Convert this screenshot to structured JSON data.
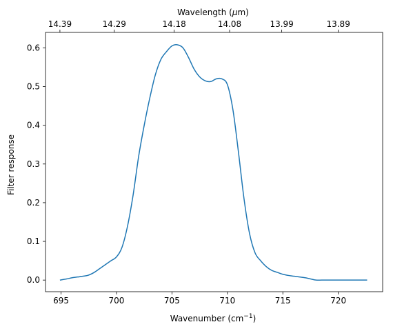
{
  "chart_data": {
    "type": "line",
    "title": "",
    "xlabel": "Wavenumber (cm",
    "xlabel_superscript": "−1",
    "xlabel_suffix": ")",
    "ylabel": "Filter response",
    "top_xlabel": "Wavelength (",
    "top_xlabel_mu": "μ",
    "top_xlabel_suffix": "m)",
    "xlim": [
      693.6,
      724.0
    ],
    "ylim": [
      -0.03,
      0.64
    ],
    "grid": false,
    "x_ticks": [
      695,
      700,
      705,
      710,
      715,
      720
    ],
    "x_tick_labels": [
      "695",
      "700",
      "705",
      "710",
      "715",
      "720"
    ],
    "y_ticks": [
      0.0,
      0.1,
      0.2,
      0.3,
      0.4,
      0.5,
      0.6
    ],
    "y_tick_labels": [
      "0.0",
      "0.1",
      "0.2",
      "0.3",
      "0.4",
      "0.5",
      "0.6"
    ],
    "top_ticks": [
      694.9,
      699.8,
      705.2,
      710.2,
      714.9,
      720.0
    ],
    "top_tick_labels": [
      "14.39",
      "14.29",
      "14.18",
      "14.08",
      "13.99",
      "13.89"
    ],
    "series": [
      {
        "color": "#1f77b4",
        "x": [
          694.9,
          695.5,
          696.0,
          696.5,
          697.0,
          697.5,
          698.0,
          698.5,
          699.0,
          699.5,
          700.0,
          700.5,
          701.0,
          701.5,
          702.0,
          702.5,
          703.0,
          703.5,
          704.0,
          704.5,
          705.0,
          705.5,
          706.0,
          706.5,
          707.0,
          707.5,
          708.0,
          708.5,
          709.0,
          709.5,
          710.0,
          710.5,
          711.0,
          711.5,
          712.0,
          712.5,
          713.0,
          713.5,
          714.0,
          714.5,
          715.0,
          715.5,
          716.0,
          716.5,
          717.0,
          717.5,
          718.0,
          718.5,
          719.0,
          719.5,
          720.0,
          720.5,
          721.0,
          721.5,
          722.0,
          722.6
        ],
        "y": [
          0.0,
          0.003,
          0.006,
          0.008,
          0.01,
          0.013,
          0.02,
          0.03,
          0.04,
          0.05,
          0.06,
          0.085,
          0.14,
          0.22,
          0.32,
          0.4,
          0.47,
          0.53,
          0.57,
          0.59,
          0.605,
          0.608,
          0.6,
          0.575,
          0.545,
          0.525,
          0.515,
          0.513,
          0.52,
          0.52,
          0.505,
          0.44,
          0.33,
          0.21,
          0.12,
          0.07,
          0.05,
          0.035,
          0.025,
          0.02,
          0.015,
          0.012,
          0.01,
          0.008,
          0.006,
          0.003,
          0.0,
          0.0,
          0.0,
          0.0,
          0.0,
          0.0,
          0.0,
          0.0,
          0.0,
          0.0
        ]
      }
    ]
  }
}
